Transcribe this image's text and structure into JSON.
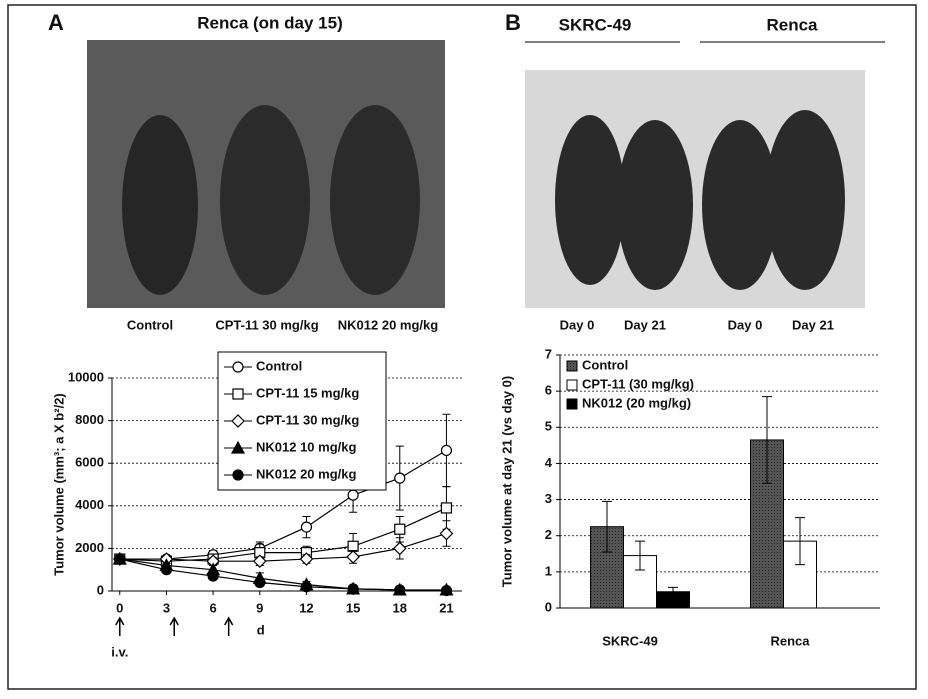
{
  "panels": [
    {
      "label": "A",
      "photo_title": "Renca (on day 15)",
      "photo_captions": [
        "Control",
        "CPT-11 30 mg/kg",
        "NK012 20 mg/kg"
      ]
    },
    {
      "label": "B",
      "photo_groups": [
        "SKRC-49",
        "Renca"
      ],
      "photo_captions": [
        "Day 0",
        "Day 21",
        "Day 0",
        "Day 21"
      ]
    }
  ],
  "chart_data": [
    {
      "type": "line",
      "y_label": "Tumor volume (mm³; a X b²/2)",
      "x": [
        0,
        3,
        6,
        9,
        12,
        15,
        18,
        21
      ],
      "xlim": [
        -0.5,
        22
      ],
      "xticks": [
        0,
        3,
        6,
        9,
        12,
        15,
        18,
        21
      ],
      "ylim": [
        0,
        10000
      ],
      "yticks": [
        0,
        2000,
        4000,
        6000,
        8000,
        10000
      ],
      "grid": true,
      "x_unit_label": "d",
      "dosing_label": "i.v.",
      "dosing_days": [
        0,
        3.5,
        7
      ],
      "series": [
        {
          "name": "Control",
          "marker": "circle-open",
          "color": "#000000",
          "values": [
            1500,
            1500,
            1700,
            2000,
            3000,
            4500,
            5300,
            6600
          ],
          "errors": [
            100,
            150,
            200,
            300,
            500,
            800,
            1500,
            1700
          ]
        },
        {
          "name": "CPT-11 15 mg/kg",
          "marker": "square-open",
          "color": "#000000",
          "values": [
            1500,
            1400,
            1500,
            1800,
            1800,
            2100,
            2900,
            3900
          ],
          "errors": [
            100,
            100,
            200,
            400,
            300,
            600,
            600,
            1000
          ]
        },
        {
          "name": "CPT-11 30 mg/kg",
          "marker": "diamond-open",
          "color": "#000000",
          "values": [
            1500,
            1500,
            1400,
            1400,
            1500,
            1600,
            2000,
            2700
          ],
          "errors": [
            100,
            100,
            150,
            200,
            200,
            300,
            500,
            600
          ]
        },
        {
          "name": "NK012 10 mg/kg",
          "marker": "triangle-filled",
          "color": "#000000",
          "values": [
            1500,
            1200,
            1000,
            600,
            300,
            100,
            50,
            50
          ],
          "errors": [
            100,
            100,
            200,
            250,
            150,
            50,
            50,
            50
          ]
        },
        {
          "name": "NK012 20 mg/kg",
          "marker": "circle-filled",
          "color": "#000000",
          "values": [
            1500,
            1000,
            700,
            400,
            200,
            100,
            50,
            20
          ],
          "errors": [
            100,
            100,
            150,
            100,
            50,
            50,
            30,
            20
          ]
        }
      ]
    },
    {
      "type": "bar",
      "y_label": "Tumor volume at day 21 (vs day 0)",
      "categories": [
        "SKRC-49",
        "Renca"
      ],
      "ylim": [
        0,
        7
      ],
      "yticks": [
        0,
        1,
        2,
        3,
        4,
        5,
        6,
        7
      ],
      "grid": true,
      "series": [
        {
          "name": "Control",
          "color": "#4a4a4a",
          "values": [
            2.25,
            4.65
          ],
          "errors": [
            0.7,
            1.2
          ]
        },
        {
          "name": "CPT-11 (30 mg/kg)",
          "color": "#ffffff",
          "values": [
            1.45,
            1.85
          ],
          "errors": [
            0.4,
            0.65
          ]
        },
        {
          "name": "NK012 (20 mg/kg)",
          "color": "#000000",
          "values": [
            0.45,
            null
          ],
          "errors": [
            0.12,
            null
          ]
        }
      ]
    }
  ]
}
